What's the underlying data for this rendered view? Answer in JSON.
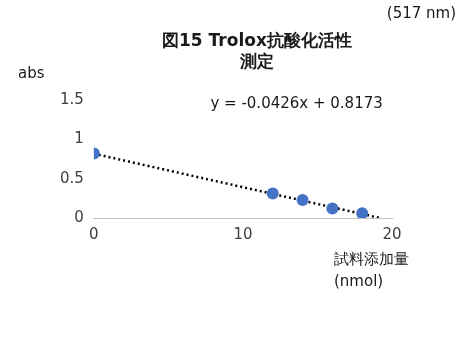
{
  "chart_data": {
    "type": "scatter",
    "title": [
      "図15 Trolox抗酸化活性",
      "測定"
    ],
    "subtitle": "(517 nm)",
    "y_label": "abs",
    "x_label": [
      "試料添加量",
      "(nmol)"
    ],
    "annotation": "y = -0.0426x + 0.8173",
    "series": [
      {
        "type": "scatter",
        "marker": "circle",
        "color": "#4472c4",
        "x": [
          0,
          12,
          14,
          16,
          18
        ],
        "values": [
          0.82,
          0.31,
          0.23,
          0.12,
          0.06
        ]
      },
      {
        "type": "line",
        "line_style": "dotted",
        "color": "#000000",
        "x": [
          0,
          19.2
        ],
        "values": [
          0.8173,
          0
        ]
      }
    ],
    "xlim": [
      0,
      20
    ],
    "xticks": [
      0,
      10,
      20
    ],
    "ylim": [
      0,
      1.5
    ],
    "yticks": [
      0,
      0.5,
      1,
      1.5
    ],
    "grid": false
  }
}
